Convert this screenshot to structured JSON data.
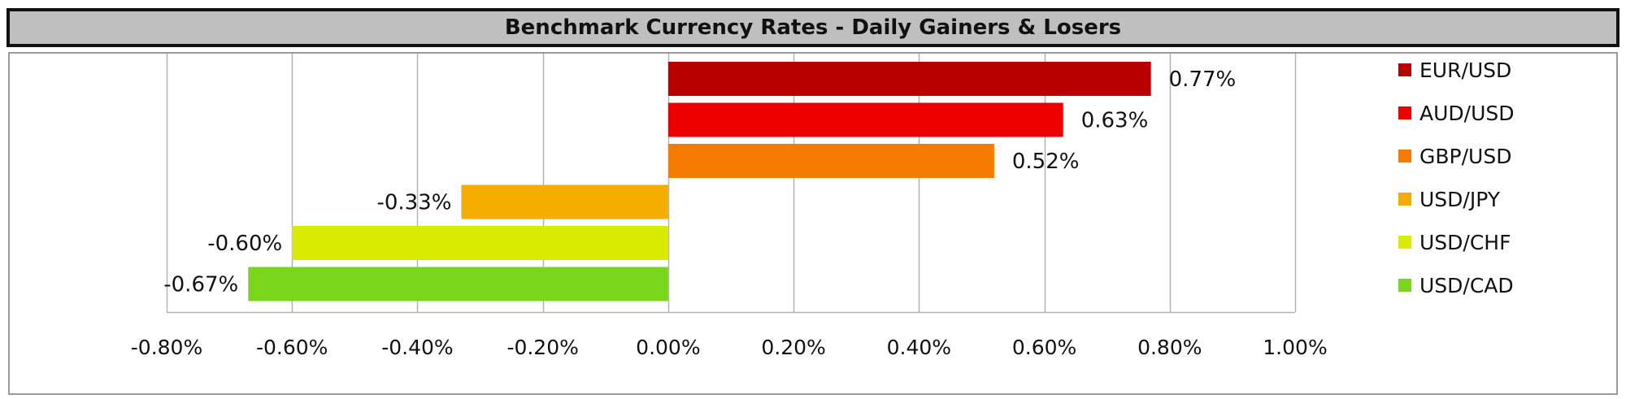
{
  "title": "Benchmark Currency Rates - Daily Gainers & Losers",
  "chart_data": {
    "type": "bar",
    "orientation": "horizontal",
    "categories": [
      "EUR/USD",
      "AUD/USD",
      "GBP/USD",
      "USD/JPY",
      "USD/CHF",
      "USD/CAD"
    ],
    "values": [
      0.77,
      0.63,
      0.52,
      -0.33,
      -0.6,
      -0.67
    ],
    "value_labels": [
      "0.77%",
      "0.63%",
      "0.52%",
      "-0.33%",
      "-0.60%",
      "-0.67%"
    ],
    "colors": [
      "#b80000",
      "#ee0000",
      "#f57c00",
      "#f5ad00",
      "#d9ec00",
      "#7ad61b"
    ],
    "xlim": [
      -0.8,
      1.0
    ],
    "x_ticks": [
      -0.8,
      -0.6,
      -0.4,
      -0.2,
      0.0,
      0.2,
      0.4,
      0.6,
      0.8,
      1.0
    ],
    "x_tick_labels": [
      "-0.80%",
      "-0.60%",
      "-0.40%",
      "-0.20%",
      "0.00%",
      "0.20%",
      "0.40%",
      "0.60%",
      "0.80%",
      "1.00%"
    ],
    "grid": "vertical",
    "legend": {
      "position": "right",
      "entries": [
        "EUR/USD",
        "AUD/USD",
        "GBP/USD",
        "USD/JPY",
        "USD/CHF",
        "USD/CAD"
      ]
    }
  }
}
